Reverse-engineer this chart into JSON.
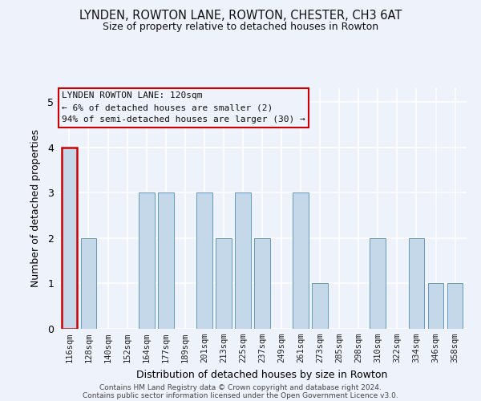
{
  "title1": "LYNDEN, ROWTON LANE, ROWTON, CHESTER, CH3 6AT",
  "title2": "Size of property relative to detached houses in Rowton",
  "xlabel": "Distribution of detached houses by size in Rowton",
  "ylabel": "Number of detached properties",
  "categories": [
    "116sqm",
    "128sqm",
    "140sqm",
    "152sqm",
    "164sqm",
    "177sqm",
    "189sqm",
    "201sqm",
    "213sqm",
    "225sqm",
    "237sqm",
    "249sqm",
    "261sqm",
    "273sqm",
    "285sqm",
    "298sqm",
    "310sqm",
    "322sqm",
    "334sqm",
    "346sqm",
    "358sqm"
  ],
  "values": [
    4,
    2,
    0,
    0,
    3,
    3,
    0,
    3,
    2,
    3,
    2,
    0,
    3,
    1,
    0,
    0,
    2,
    0,
    2,
    1,
    1
  ],
  "bar_color": "#c5d8ea",
  "bar_edge_color": "#6699bb",
  "highlight_index": 0,
  "highlight_edge_color": "#cc0000",
  "annotation_line1": "LYNDEN ROWTON LANE: 120sqm",
  "annotation_line2": "← 6% of detached houses are smaller (2)",
  "annotation_line3": "94% of semi-detached houses are larger (30) →",
  "annotation_box_edge_color": "#cc0000",
  "ylim": [
    0,
    5.3
  ],
  "yticks": [
    0,
    1,
    2,
    3,
    4,
    5
  ],
  "bg_color": "#eef2fa",
  "footer1": "Contains HM Land Registry data © Crown copyright and database right 2024.",
  "footer2": "Contains public sector information licensed under the Open Government Licence v3.0."
}
